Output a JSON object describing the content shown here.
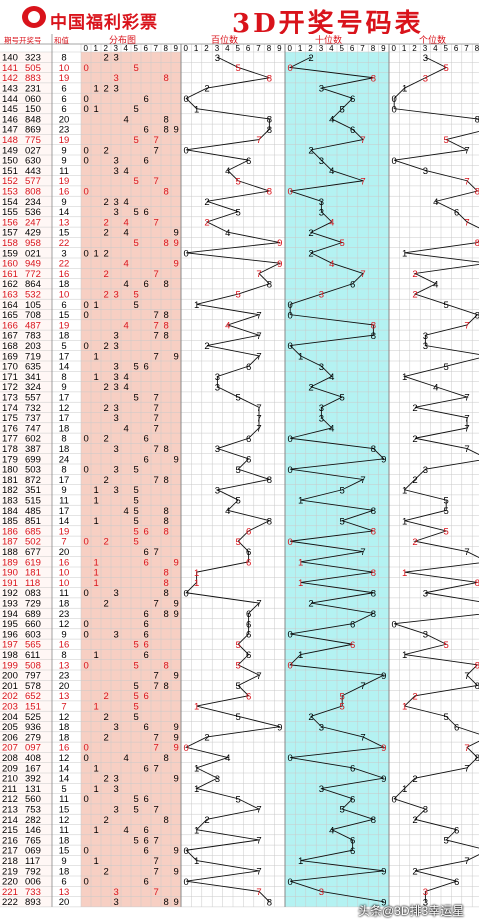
{
  "header": {
    "brand": "中国福利彩票",
    "title": "3D开奖号码表"
  },
  "columns": {
    "period": "期号",
    "prize": "开奖号",
    "sum": "和值",
    "dist": "分布图",
    "hundreds": "百位数",
    "tens": "十位数",
    "units": "个位数"
  },
  "digits": [
    "0",
    "1",
    "2",
    "3",
    "4",
    "5",
    "6",
    "7",
    "8",
    "9"
  ],
  "watermark": "头条@3D排3幸运星",
  "colors": {
    "red": "#d9131b",
    "salmon": "#f6c7b8",
    "cyan": "#a7f0f0",
    "grid": "#c9c9c9",
    "ink": "#000000"
  },
  "draws": [
    {
      "p": "140",
      "n": "323"
    },
    {
      "p": "141",
      "n": "505"
    },
    {
      "p": "142",
      "n": "883"
    },
    {
      "p": "143",
      "n": "231"
    },
    {
      "p": "144",
      "n": "060"
    },
    {
      "p": "145",
      "n": "150"
    },
    {
      "p": "146",
      "n": "848"
    },
    {
      "p": "147",
      "n": "869"
    },
    {
      "p": "148",
      "n": "775"
    },
    {
      "p": "149",
      "n": "027"
    },
    {
      "p": "150",
      "n": "630"
    },
    {
      "p": "151",
      "n": "443"
    },
    {
      "p": "152",
      "n": "577"
    },
    {
      "p": "153",
      "n": "808"
    },
    {
      "p": "154",
      "n": "234"
    },
    {
      "p": "155",
      "n": "536"
    },
    {
      "p": "156",
      "n": "247"
    },
    {
      "p": "157",
      "n": "429"
    },
    {
      "p": "158",
      "n": "958"
    },
    {
      "p": "159",
      "n": "021"
    },
    {
      "p": "160",
      "n": "949"
    },
    {
      "p": "161",
      "n": "772"
    },
    {
      "p": "162",
      "n": "864"
    },
    {
      "p": "163",
      "n": "532"
    },
    {
      "p": "164",
      "n": "105"
    },
    {
      "p": "165",
      "n": "708"
    },
    {
      "p": "166",
      "n": "487"
    },
    {
      "p": "167",
      "n": "783"
    },
    {
      "p": "168",
      "n": "203"
    },
    {
      "p": "169",
      "n": "719"
    },
    {
      "p": "170",
      "n": "635"
    },
    {
      "p": "171",
      "n": "341"
    },
    {
      "p": "172",
      "n": "324"
    },
    {
      "p": "173",
      "n": "557"
    },
    {
      "p": "174",
      "n": "732"
    },
    {
      "p": "175",
      "n": "737"
    },
    {
      "p": "176",
      "n": "747"
    },
    {
      "p": "177",
      "n": "602"
    },
    {
      "p": "178",
      "n": "387"
    },
    {
      "p": "179",
      "n": "699"
    },
    {
      "p": "180",
      "n": "503"
    },
    {
      "p": "181",
      "n": "872"
    },
    {
      "p": "182",
      "n": "351"
    },
    {
      "p": "183",
      "n": "515"
    },
    {
      "p": "184",
      "n": "485"
    },
    {
      "p": "185",
      "n": "851"
    },
    {
      "p": "186",
      "n": "685"
    },
    {
      "p": "187",
      "n": "502"
    },
    {
      "p": "188",
      "n": "677"
    },
    {
      "p": "189",
      "n": "619"
    },
    {
      "p": "190",
      "n": "181"
    },
    {
      "p": "191",
      "n": "118"
    },
    {
      "p": "192",
      "n": "083"
    },
    {
      "p": "193",
      "n": "729"
    },
    {
      "p": "194",
      "n": "689"
    },
    {
      "p": "195",
      "n": "660"
    },
    {
      "p": "196",
      "n": "603"
    },
    {
      "p": "197",
      "n": "565"
    },
    {
      "p": "198",
      "n": "611"
    },
    {
      "p": "199",
      "n": "508"
    },
    {
      "p": "200",
      "n": "797"
    },
    {
      "p": "201",
      "n": "578"
    },
    {
      "p": "202",
      "n": "652"
    },
    {
      "p": "203",
      "n": "151"
    },
    {
      "p": "204",
      "n": "525"
    },
    {
      "p": "205",
      "n": "936"
    },
    {
      "p": "206",
      "n": "279"
    },
    {
      "p": "207",
      "n": "097"
    },
    {
      "p": "208",
      "n": "408"
    },
    {
      "p": "209",
      "n": "167"
    },
    {
      "p": "210",
      "n": "392"
    },
    {
      "p": "211",
      "n": "131"
    },
    {
      "p": "212",
      "n": "560"
    },
    {
      "p": "213",
      "n": "753"
    },
    {
      "p": "214",
      "n": "282"
    },
    {
      "p": "215",
      "n": "146"
    },
    {
      "p": "216",
      "n": "765"
    },
    {
      "p": "217",
      "n": "069"
    },
    {
      "p": "218",
      "n": "117"
    },
    {
      "p": "219",
      "n": "792"
    },
    {
      "p": "220",
      "n": "006"
    },
    {
      "p": "221",
      "n": "733"
    },
    {
      "p": "222",
      "n": "893"
    }
  ]
}
